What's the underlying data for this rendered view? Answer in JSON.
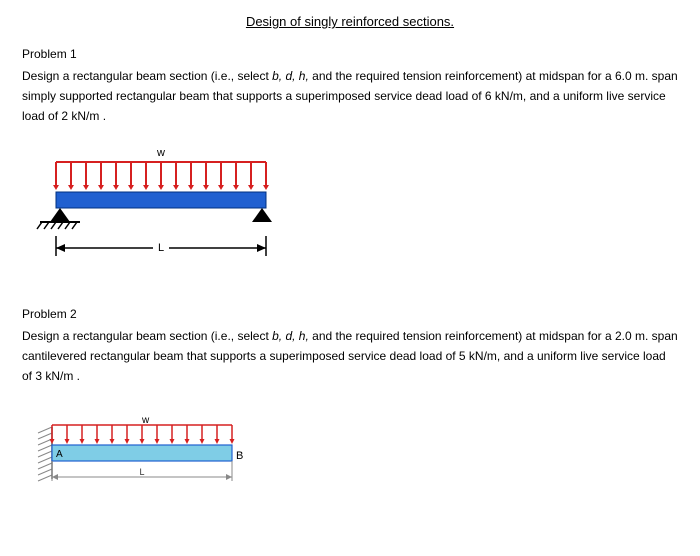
{
  "title": "Design of singly reinforced sections.",
  "problem1": {
    "header": "Problem 1",
    "text_part1": "Design a rectangular beam section (i.e., select ",
    "text_vars": "b, d, h,",
    "text_part2": " and the required tension reinforcement) at midspan for a 6.0 m. span simply supported rectangular beam that supports a superimposed service dead load of 6 kN/m, and a uniform live service load of 2 kN/m ."
  },
  "problem2": {
    "header": "Problem 2",
    "text_part1": "Design a rectangular beam section (i.e., select ",
    "text_vars": "b, d, h,",
    "text_part2": " and the required tension reinforcement) at midspan for a 2.0 m. span cantilevered rectangular beam that supports a superimposed service dead load of 5 kN/m, and a uniform live service load of 3 kN/m ."
  },
  "diagram1": {
    "load_label": "w",
    "span_label": "L",
    "load_color": "#d62020",
    "beam_color": "#2060d0",
    "support_color": "#000000",
    "beam_width": 210,
    "beam_height": 16,
    "arrow_count": 15,
    "arrow_height": 26
  },
  "diagram2": {
    "load_label": "w",
    "span_label": "L",
    "point_a": "A",
    "point_b": "B",
    "load_color": "#d62020",
    "beam_fill": "#7fcde6",
    "beam_stroke": "#2060d0",
    "wall_hatch": "#888888",
    "beam_width": 180,
    "beam_height": 16,
    "arrow_count": 13,
    "arrow_height": 20
  }
}
